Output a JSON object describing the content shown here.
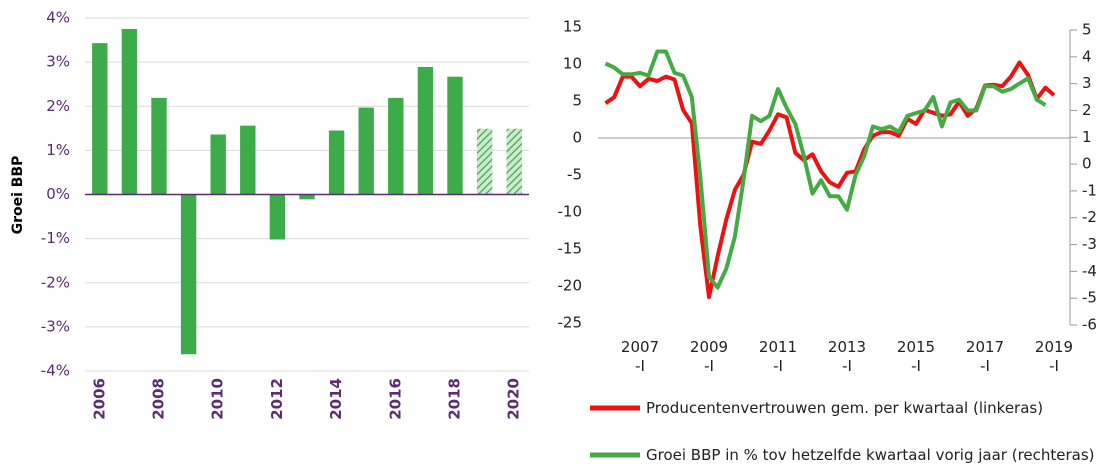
{
  "chart_data": [
    {
      "type": "bar",
      "y_label": "Groei BBP",
      "categories": [
        "2006",
        null,
        "2008",
        null,
        "2010",
        null,
        "2012",
        null,
        "2014",
        null,
        "2016",
        null,
        "2018",
        null,
        "2020"
      ],
      "values": [
        3.43,
        3.75,
        2.19,
        -3.62,
        1.36,
        1.56,
        -1.02,
        -0.11,
        1.45,
        1.97,
        2.19,
        2.89,
        2.67,
        1.49,
        1.49
      ],
      "patterns": [
        "solid",
        "solid",
        "solid",
        "solid",
        "solid",
        "solid",
        "solid",
        "solid",
        "solid",
        "solid",
        "solid",
        "solid",
        "solid",
        "hatched",
        "hatched"
      ],
      "color": "#3dab4a",
      "ylim": [
        -4,
        4
      ],
      "yticks": [
        {
          "value": -4,
          "label": "-4%"
        },
        {
          "value": -3,
          "label": "-3%"
        },
        {
          "value": -2,
          "label": "-2%"
        },
        {
          "value": -1,
          "label": "-1%"
        },
        {
          "value": 0,
          "label": "0%"
        },
        {
          "value": 1,
          "label": "1%"
        },
        {
          "value": 2,
          "label": "2%"
        },
        {
          "value": 3,
          "label": "3%"
        },
        {
          "value": 4,
          "label": "4%"
        }
      ],
      "grid": true
    },
    {
      "type": "line",
      "categories": [
        null,
        null,
        null,
        null,
        "2007\n-I",
        null,
        null,
        null,
        null,
        null,
        null,
        null,
        "2009\n-I",
        null,
        null,
        null,
        null,
        null,
        null,
        null,
        "2011\n-I",
        null,
        null,
        null,
        null,
        null,
        null,
        null,
        "2013\n-I",
        null,
        null,
        null,
        null,
        null,
        null,
        null,
        "2015\n-I",
        null,
        null,
        null,
        null,
        null,
        null,
        null,
        "2017\n-I",
        null,
        null,
        null,
        null,
        null,
        null,
        null,
        "2019\n-I"
      ],
      "series": [
        {
          "name": "Producentenvertrouwen gem. per kwartaal (linkeras)",
          "color": "#ee1111",
          "axis": "y",
          "values": [
            4.7,
            5.5,
            8.3,
            8.3,
            7.0,
            8.0,
            7.7,
            8.3,
            7.9,
            3.8,
            2.0,
            -12,
            -21.5,
            -16,
            -11,
            -7,
            -5,
            -0.5,
            -0.8,
            1.0,
            3.2,
            2.8,
            -2,
            -3.0,
            -2.2,
            -4.5,
            -6,
            -6.6,
            -4.7,
            -4.5,
            -1.5,
            0.3,
            0.8,
            0.8,
            0.3,
            2.6,
            1.9,
            3.8,
            3.4,
            3.0,
            3.2,
            4.9,
            3.0,
            4.0,
            7.1,
            7.2,
            7.0,
            8.3,
            10.2,
            8.5,
            5.3,
            6.8,
            5.8
          ]
        },
        {
          "name": "Groei BBP in % tov hetzelfde kwartaal vorig jaar (rechteras)",
          "color": "#44aa44",
          "axis": "y2",
          "values": [
            3.75,
            3.6,
            3.35,
            3.35,
            3.4,
            3.3,
            4.2,
            4.2,
            3.4,
            3.3,
            2.5,
            -0.5,
            -4.2,
            -4.6,
            -3.9,
            -2.7,
            -0.6,
            1.8,
            1.6,
            1.8,
            2.8,
            2.1,
            1.5,
            0.3,
            -1.1,
            -0.6,
            -1.2,
            -1.2,
            -1.7,
            -0.4,
            0.3,
            1.4,
            1.3,
            1.4,
            1.2,
            1.8,
            1.9,
            2.0,
            2.5,
            1.4,
            2.3,
            2.4,
            2.0,
            2.0,
            2.9,
            2.9,
            2.7,
            2.8,
            3.0,
            3.2,
            2.4,
            2.2,
            null
          ]
        }
      ],
      "ylim": [
        -25,
        15
      ],
      "yticks": [
        -25,
        -20,
        -15,
        -10,
        -5,
        0,
        5,
        10,
        15
      ],
      "y2lim": [
        -6,
        5
      ],
      "y2ticks": [
        -6,
        -5,
        -4,
        -3,
        -2,
        -1,
        0,
        1,
        2,
        3,
        4,
        5
      ],
      "grid": false
    }
  ]
}
